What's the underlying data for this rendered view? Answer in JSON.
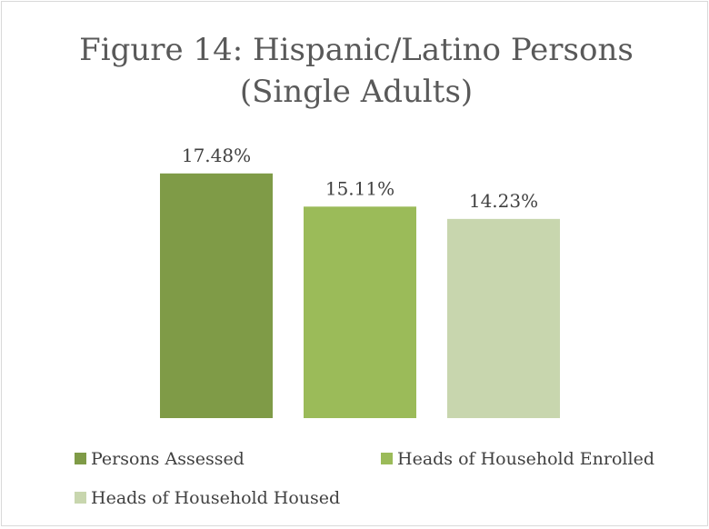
{
  "chart_data": {
    "type": "bar",
    "title_lines": [
      "Figure 14: Hispanic/Latino Persons",
      "(Single Adults)"
    ],
    "categories": [
      "Persons Assessed",
      "Heads of Household Enrolled",
      "Heads of Household Housed"
    ],
    "values": [
      17.48,
      15.11,
      14.23
    ],
    "data_labels": [
      "17.48%",
      "15.11%",
      "14.23%"
    ],
    "colors": [
      "#7f9b47",
      "#9bbb59",
      "#c8d6ae"
    ],
    "ylim": [
      0,
      20
    ],
    "grid": false,
    "legend_position": "bottom"
  }
}
